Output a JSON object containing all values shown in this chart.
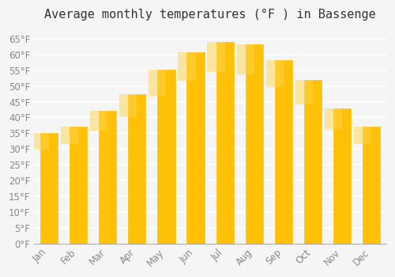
{
  "title": "Average monthly temperatures (°F ) in Bassenge",
  "months": [
    "Jan",
    "Feb",
    "Mar",
    "Apr",
    "May",
    "Jun",
    "Jul",
    "Aug",
    "Sep",
    "Oct",
    "Nov",
    "Dec"
  ],
  "values": [
    35.1,
    37.0,
    42.1,
    47.3,
    55.2,
    60.8,
    63.9,
    63.3,
    58.3,
    51.8,
    42.8,
    37.0
  ],
  "bar_color_top": "#FFC107",
  "bar_color_bottom": "#FFB300",
  "background_color": "#f5f5f5",
  "grid_color": "#ffffff",
  "tick_color": "#888888",
  "title_color": "#333333",
  "ylim": [
    0,
    68
  ],
  "ytick_step": 5,
  "title_fontsize": 11,
  "tick_fontsize": 8.5
}
